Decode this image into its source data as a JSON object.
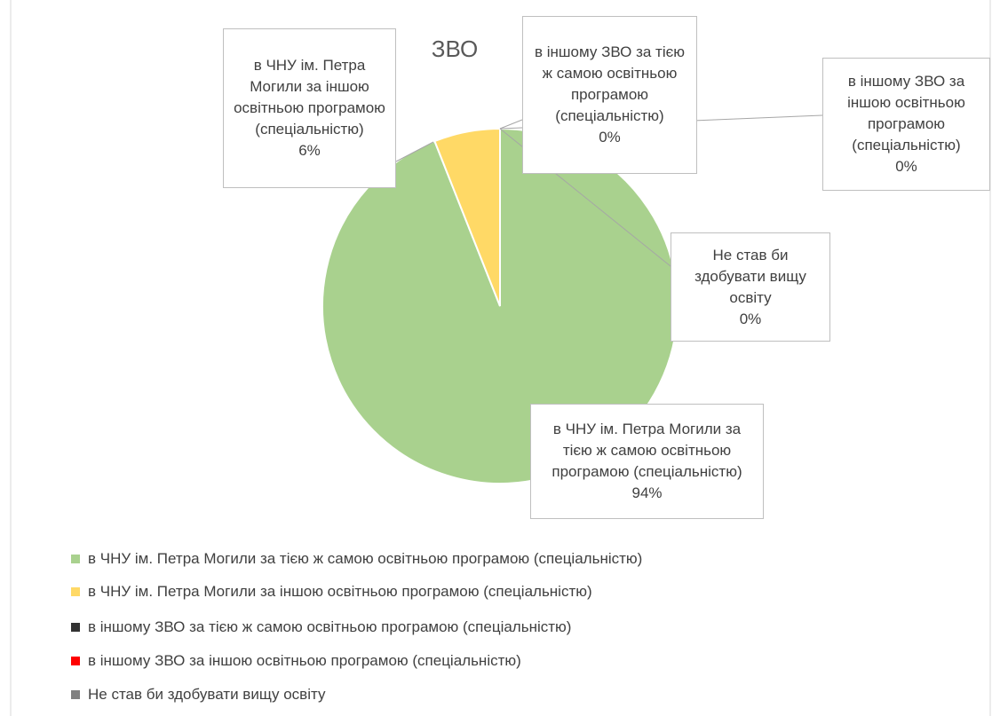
{
  "chart_data": {
    "type": "pie",
    "title": "ЗВО",
    "categories": [
      "в ЧНУ ім. Петра Могили за тією ж самою освітньою програмою (спеціальністю)",
      "в  ЧНУ ім. Петра Могили за іншою освітньою програмою (спеціальністю)",
      "в іншому ЗВО за тією ж самою освітньою програмою (спеціальністю)",
      "в іншому ЗВО за іншою освітньою програмою (спеціальністю)",
      "Не став би здобувати вищу освіту"
    ],
    "values": [
      94,
      6,
      0,
      0,
      0
    ],
    "value_labels": [
      "94%",
      "6%",
      "0%",
      "0%",
      "0%"
    ],
    "colors": [
      "#a9d18e",
      "#ffd966",
      "#333333",
      "#ff0000",
      "#808080"
    ],
    "legend": "bottom"
  }
}
